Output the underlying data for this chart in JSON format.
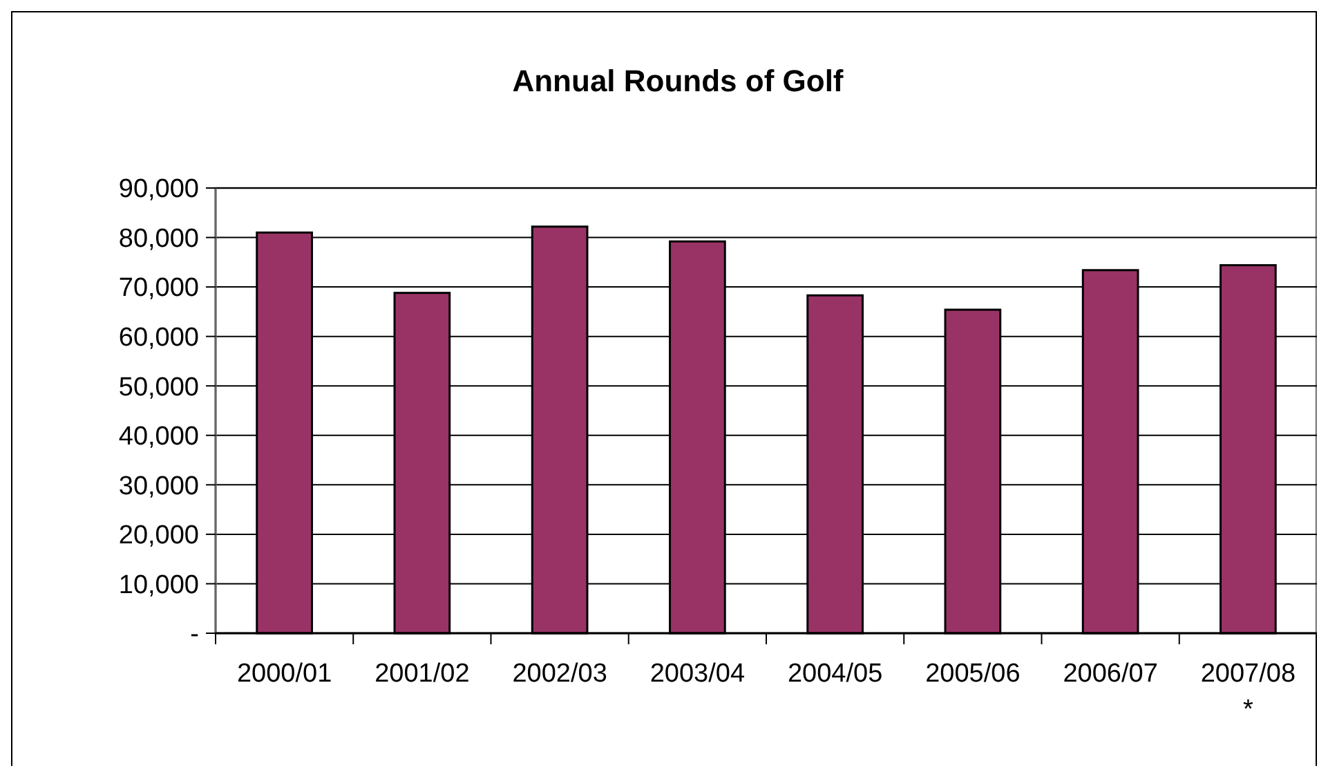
{
  "chart_data": {
    "type": "bar",
    "title": "Annual Rounds of Golf",
    "categories": [
      "2000/01",
      "2001/02",
      "2002/03",
      "2003/04",
      "2004/05",
      "2005/06",
      "2006/07",
      "2007/08\n*"
    ],
    "values": [
      81000,
      68800,
      82200,
      79200,
      68300,
      65400,
      73400,
      74400
    ],
    "color": "#993366",
    "ylim": [
      0,
      90000
    ],
    "yticks": [
      {
        "value": 0,
        "label": "-"
      },
      {
        "value": 10000,
        "label": "10,000"
      },
      {
        "value": 20000,
        "label": "20,000"
      },
      {
        "value": 30000,
        "label": "30,000"
      },
      {
        "value": 40000,
        "label": "40,000"
      },
      {
        "value": 50000,
        "label": "50,000"
      },
      {
        "value": 60000,
        "label": "60,000"
      },
      {
        "value": 70000,
        "label": "70,000"
      },
      {
        "value": 80000,
        "label": "80,000"
      },
      {
        "value": 90000,
        "label": "90,000"
      }
    ],
    "grid": "y"
  }
}
